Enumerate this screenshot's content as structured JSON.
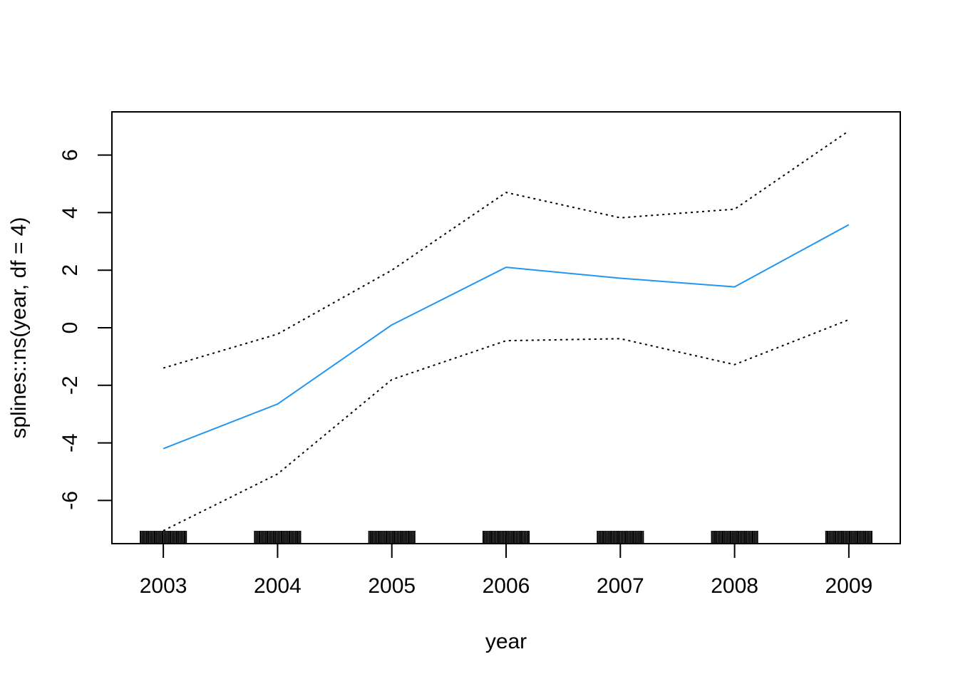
{
  "chart_data": {
    "type": "line",
    "title": "",
    "xlabel": "year",
    "ylabel": "splines::ns(year, df = 4)",
    "xlim": [
      2002.55,
      2009.45
    ],
    "ylim": [
      -7.5,
      7.5
    ],
    "x_ticks": [
      2003,
      2004,
      2005,
      2006,
      2007,
      2008,
      2009
    ],
    "x_tick_labels": [
      "2003",
      "2004",
      "2005",
      "2006",
      "2007",
      "2008",
      "2009"
    ],
    "y_ticks": [
      -6,
      -4,
      -2,
      0,
      2,
      4,
      6
    ],
    "y_tick_labels": [
      "-6",
      "-4",
      "-2",
      "0",
      "2",
      "4",
      "6"
    ],
    "grid": false,
    "legend": "none",
    "x": [
      2003,
      2004,
      2005,
      2006,
      2007,
      2008,
      2009
    ],
    "series": [
      {
        "role": "fit",
        "style": "solid",
        "color": "#2196f3",
        "values": [
          -4.2,
          -2.65,
          0.1,
          2.1,
          1.72,
          1.42,
          3.58
        ]
      },
      {
        "role": "upper",
        "style": "dotted",
        "color": "#000000",
        "values": [
          -1.4,
          -0.22,
          2.0,
          4.7,
          3.82,
          4.12,
          6.84
        ]
      },
      {
        "role": "lower",
        "style": "dotted",
        "color": "#000000",
        "values": [
          -7.05,
          -5.08,
          -1.8,
          -0.45,
          -0.38,
          -1.28,
          0.28
        ]
      }
    ],
    "rug": {
      "x": [
        2003,
        2004,
        2005,
        2006,
        2007,
        2008,
        2009
      ],
      "jitter_halfwidth_years": 0.2
    }
  }
}
